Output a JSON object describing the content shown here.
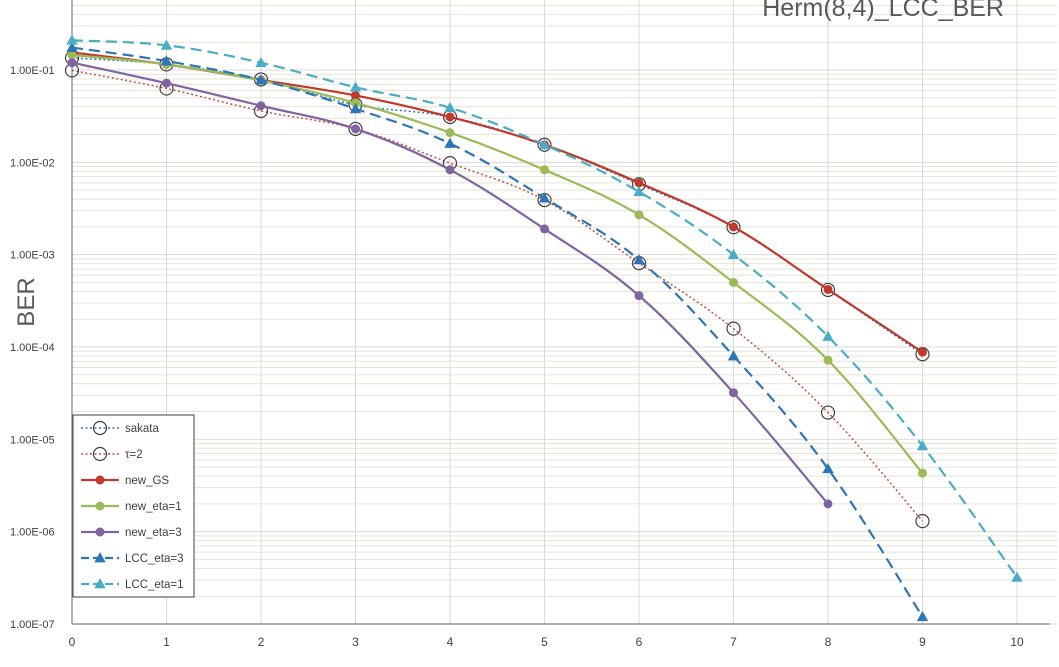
{
  "chart_data": {
    "type": "line",
    "title": "Herm(8,4)_LCC_BER",
    "xlabel": "",
    "ylabel": "BER",
    "xlim": [
      0,
      10
    ],
    "ylim": [
      1e-07,
      0.35
    ],
    "yscale": "log",
    "x_ticks": [
      "0",
      "1",
      "2",
      "3",
      "4",
      "5",
      "6",
      "7",
      "8",
      "9",
      "10"
    ],
    "y_ticks": [
      "1.00E-07",
      "1.00E-06",
      "1.00E-05",
      "1.00E-04",
      "1.00E-03",
      "1.00E-02",
      "1.00E-01"
    ],
    "grid": true,
    "legend_position": "bottom-left",
    "series": [
      {
        "name": "sakata",
        "color": "#2e75b6",
        "line": "dotted",
        "marker": "open-circle",
        "x": [
          0,
          1,
          2,
          3,
          4,
          5,
          6,
          7,
          8,
          9
        ],
        "y": [
          0.135,
          0.115,
          0.079,
          0.042,
          0.031,
          0.0155,
          0.0058,
          0.00198,
          0.000415,
          8.35e-05
        ]
      },
      {
        "name": "τ=2",
        "color": "#c0504d",
        "line": "dotted",
        "marker": "open-circle",
        "x": [
          0,
          1,
          2,
          3,
          4,
          5,
          6,
          7,
          8,
          9
        ],
        "y": [
          0.099,
          0.063,
          0.036,
          0.023,
          0.0098,
          0.0039,
          0.00081,
          0.000158,
          1.95e-05,
          1.3e-06
        ]
      },
      {
        "name": "new_GS",
        "color": "#c0392b",
        "line": "solid",
        "marker": "filled-circle",
        "x": [
          0,
          1,
          2,
          3,
          4,
          5,
          6,
          7,
          8,
          9
        ],
        "y": [
          0.155,
          0.115,
          0.078,
          0.053,
          0.031,
          0.0155,
          0.006,
          0.002,
          0.00042,
          8.8e-05
        ]
      },
      {
        "name": "new_eta=1",
        "color": "#9bbb59",
        "line": "solid",
        "marker": "filled-circle",
        "x": [
          0,
          1,
          2,
          3,
          4,
          5,
          6,
          7,
          8,
          9
        ],
        "y": [
          0.145,
          0.115,
          0.077,
          0.044,
          0.021,
          0.0083,
          0.0027,
          0.0005,
          7.2e-05,
          4.3e-06
        ]
      },
      {
        "name": "new_eta=3",
        "color": "#8064a2",
        "line": "solid",
        "marker": "filled-circle",
        "x": [
          0,
          1,
          2,
          3,
          4,
          5,
          6,
          7,
          8
        ],
        "y": [
          0.12,
          0.072,
          0.041,
          0.023,
          0.0083,
          0.0019,
          0.00036,
          3.2e-05,
          2e-06
        ]
      },
      {
        "name": "LCC_eta=3",
        "color": "#2e75b6",
        "line": "dashed",
        "marker": "filled-triangle",
        "x": [
          0,
          1,
          2,
          3,
          4,
          5,
          6,
          7,
          8,
          9
        ],
        "y": [
          0.175,
          0.125,
          0.078,
          0.038,
          0.016,
          0.0041,
          0.00088,
          8e-05,
          4.8e-06,
          1.2e-07
        ]
      },
      {
        "name": "LCC_eta=1",
        "color": "#4bacc6",
        "line": "dashed",
        "marker": "filled-triangle",
        "x": [
          0,
          1,
          2,
          3,
          4,
          5,
          6,
          7,
          8,
          9,
          10
        ],
        "y": [
          0.21,
          0.185,
          0.12,
          0.065,
          0.039,
          0.0155,
          0.0048,
          0.001,
          0.00013,
          8.5e-06,
          3.2e-07
        ]
      }
    ]
  }
}
